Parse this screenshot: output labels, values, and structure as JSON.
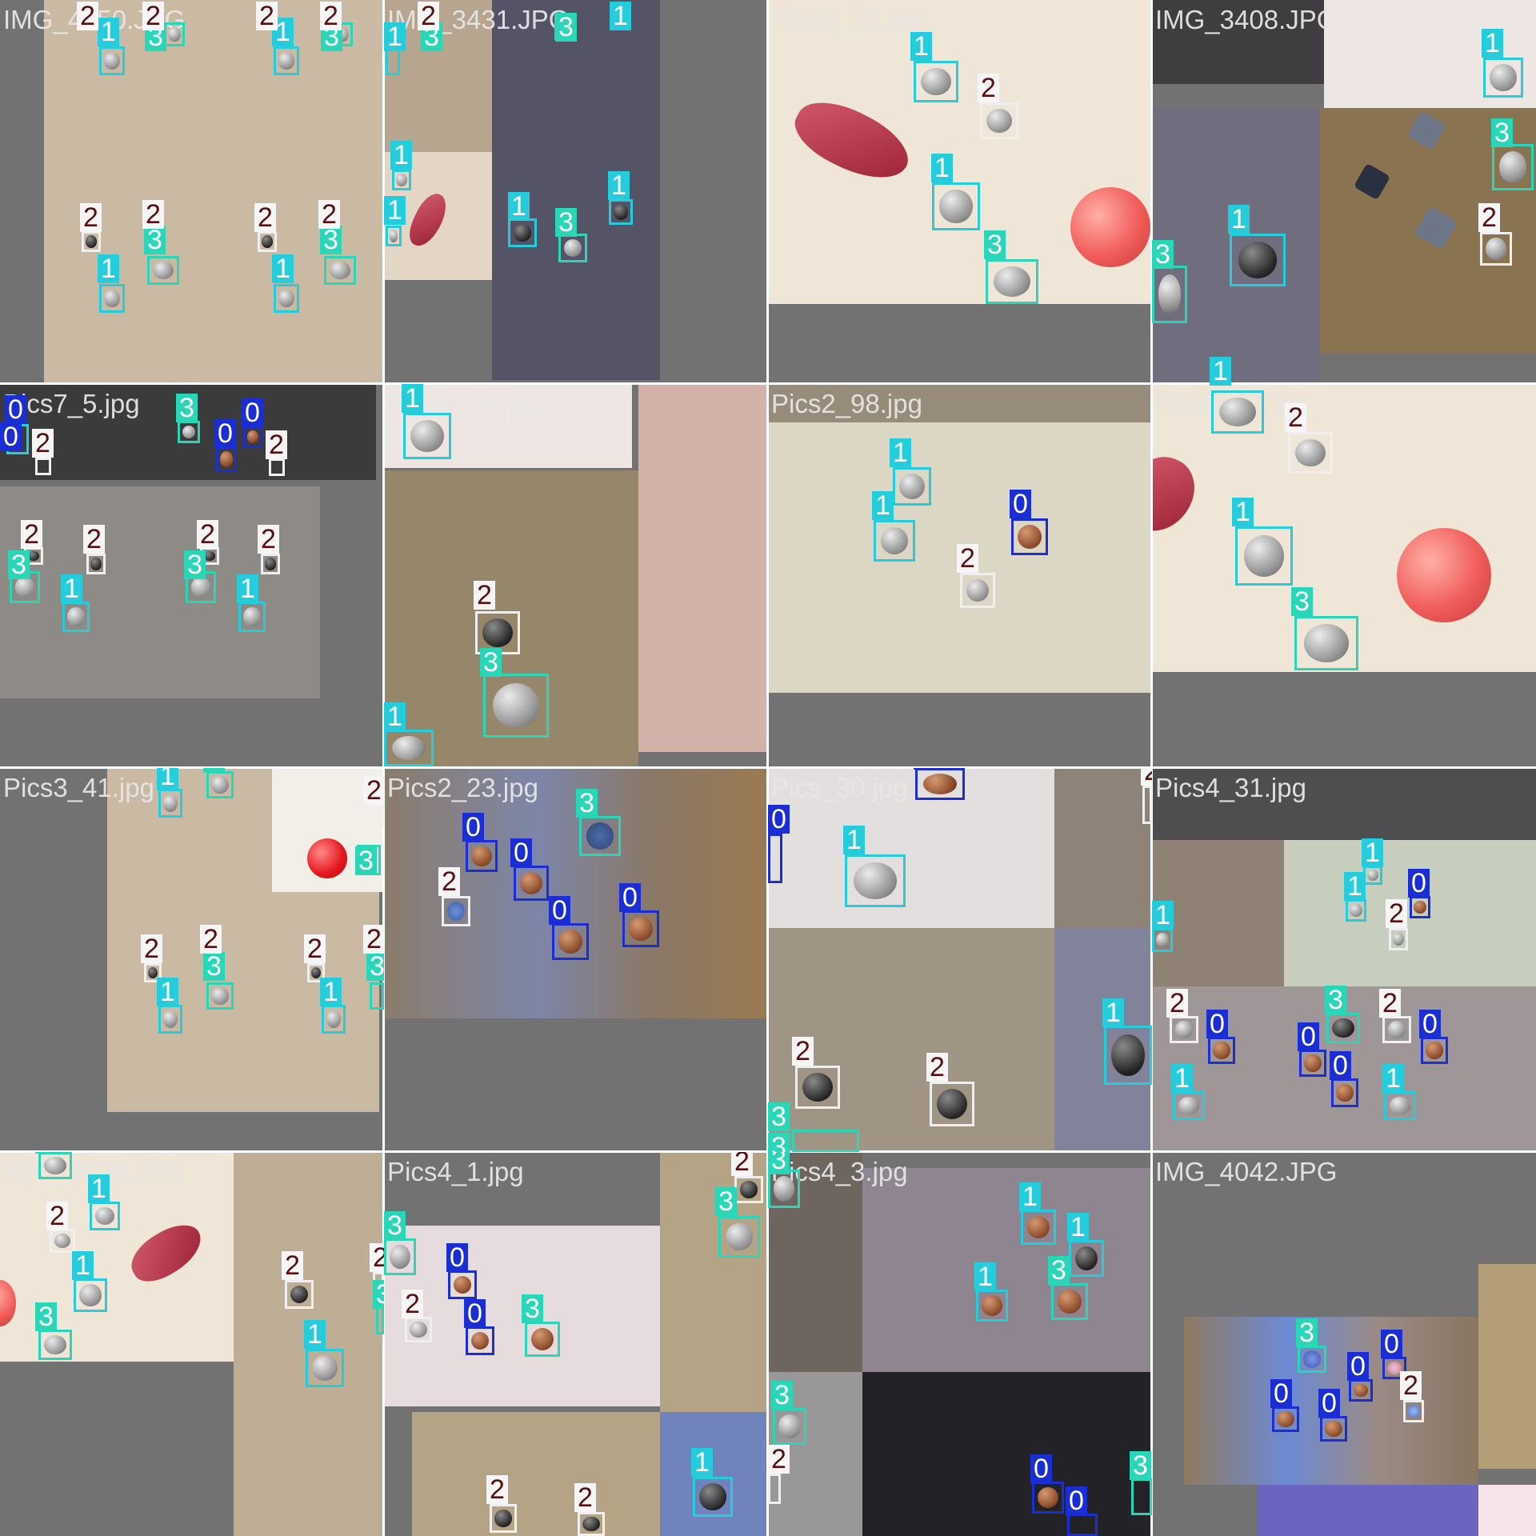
{
  "tiles": [
    {
      "filename": "IMG_4050.JPG"
    },
    {
      "filename": "IMG_3431.JPG"
    },
    {
      "filename": "Pics3_72.jpg"
    },
    {
      "filename": "IMG_3408.JPG"
    },
    {
      "filename": "Pics7_5.jpg"
    },
    {
      "filename": "Pics8_34.jpg"
    },
    {
      "filename": "Pics2_98.jpg"
    },
    {
      "filename": "Pics3_12.jpg"
    },
    {
      "filename": "Pics3_41.jpg"
    },
    {
      "filename": "Pics2_23.jpg"
    },
    {
      "filename": "Pics_30.jpg"
    },
    {
      "filename": "Pics4_31.jpg"
    },
    {
      "filename": "IMG_3028.JPG"
    },
    {
      "filename": "Pics4_1.jpg"
    },
    {
      "filename": "Pics4_3.jpg"
    },
    {
      "filename": "IMG_4042.JPG"
    }
  ],
  "class_labels": [
    "0",
    "1",
    "2",
    "3"
  ],
  "class_colors": {
    "0": "#1a2ed3",
    "1": "#25ccdb",
    "2": "#f5f5f5",
    "3": "#2ad6b8"
  }
}
